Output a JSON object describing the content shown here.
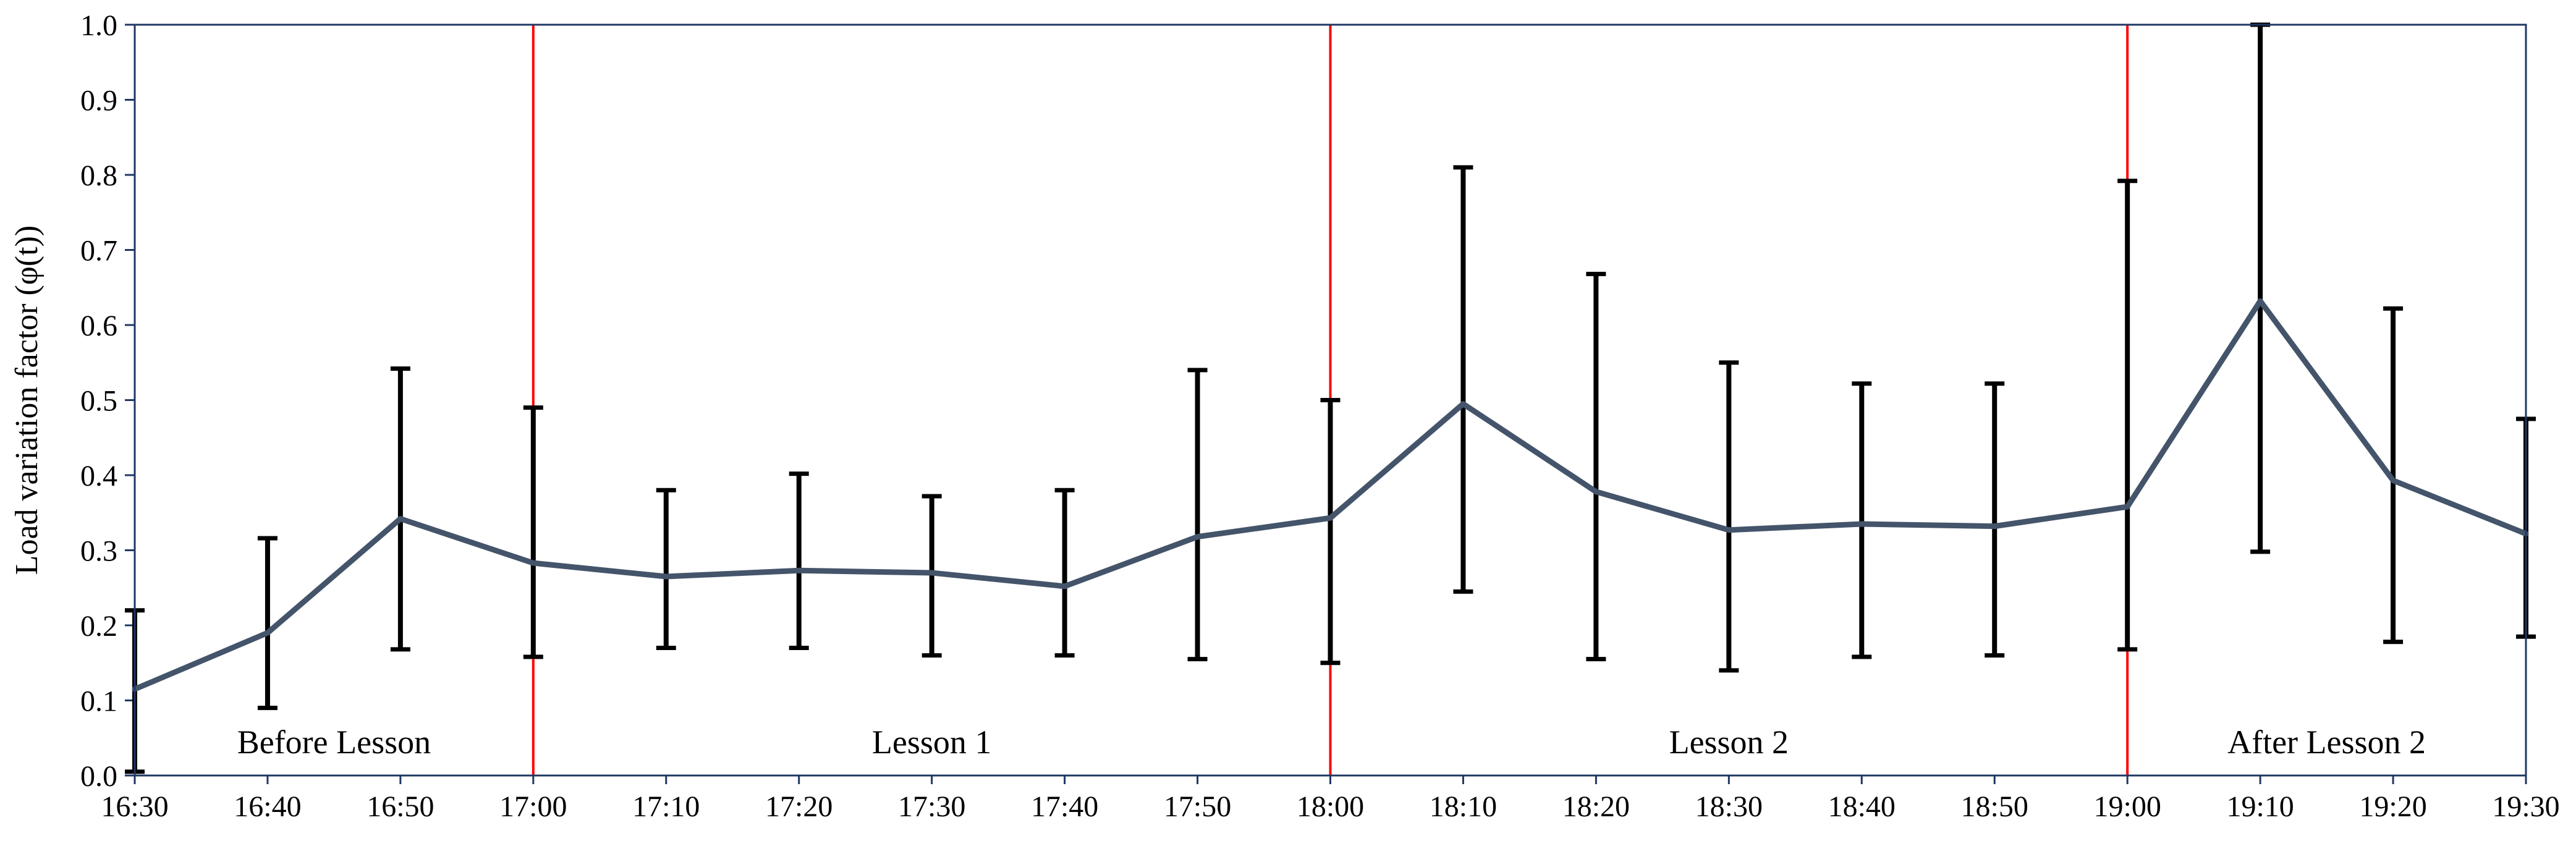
{
  "chart_data": {
    "type": "line",
    "title": "",
    "xlabel": "",
    "ylabel": "Load variation factor (φ(t))",
    "ylim": [
      0,
      1.0
    ],
    "yticks": [
      "0.0",
      "0.1",
      "0.2",
      "0.3",
      "0.4",
      "0.5",
      "0.6",
      "0.7",
      "0.8",
      "0.9",
      "1.0"
    ],
    "grid": false,
    "legend": "none",
    "x": [
      "16:30",
      "16:40",
      "16:50",
      "17:00",
      "17:10",
      "17:20",
      "17:30",
      "17:40",
      "17:50",
      "18:00",
      "18:10",
      "18:20",
      "18:30",
      "18:40",
      "18:50",
      "19:00",
      "19:10",
      "19:20",
      "19:30"
    ],
    "series": [
      {
        "values": [
          0.115,
          0.19,
          0.342,
          0.283,
          0.265,
          0.273,
          0.27,
          0.252,
          0.318,
          0.343,
          0.495,
          0.378,
          0.327,
          0.335,
          0.332,
          0.358,
          0.632,
          0.393,
          0.322
        ],
        "error_low": [
          0.005,
          0.09,
          0.168,
          0.158,
          0.17,
          0.17,
          0.16,
          0.16,
          0.155,
          0.15,
          0.245,
          0.155,
          0.14,
          0.158,
          0.16,
          0.168,
          0.298,
          0.178,
          0.185
        ],
        "error_high": [
          0.22,
          0.316,
          0.542,
          0.49,
          0.38,
          0.402,
          0.372,
          0.38,
          0.54,
          0.5,
          0.81,
          0.668,
          0.55,
          0.522,
          0.522,
          0.792,
          1.0,
          0.622,
          0.475
        ],
        "color": "#44546a"
      }
    ],
    "phase_boundaries": [
      "17:00",
      "18:00",
      "19:00"
    ],
    "phase_boundary_color": "#ff0000",
    "phase_labels": [
      {
        "text": "Before Lesson",
        "at": "16:45"
      },
      {
        "text": "Lesson 1",
        "at": "17:30"
      },
      {
        "text": "Lesson 2",
        "at": "18:30"
      },
      {
        "text": "After Lesson 2",
        "at": "19:15"
      }
    ],
    "error_bar_color": "#000000"
  }
}
